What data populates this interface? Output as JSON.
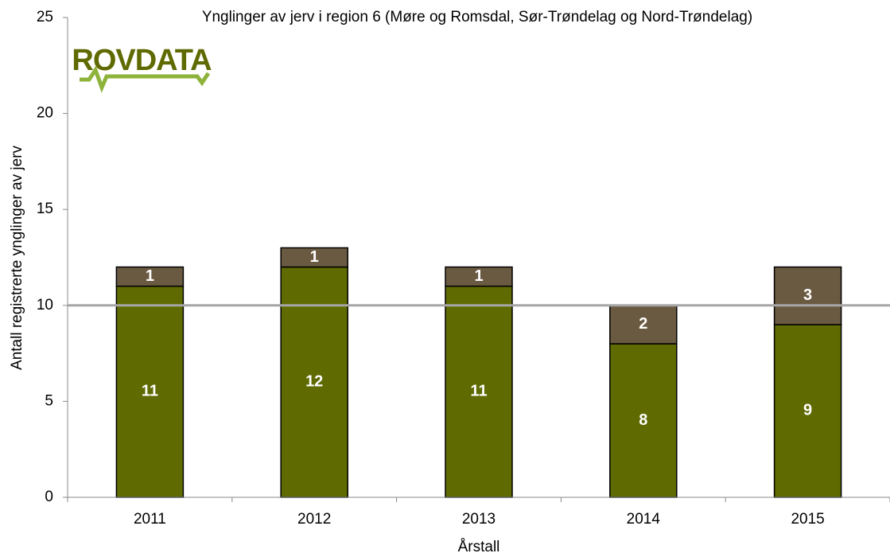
{
  "chart_data": {
    "type": "stacked_bar",
    "title": "Ynglinger av jerv i region 6 (Møre og Romsdal, Sør-Trøndelag og Nord-Trøndelag)",
    "logo": "ROVDATA",
    "x_label": "Årstall",
    "y_label": "Antall registrerte ynglinger av jerv",
    "categories": [
      "2011",
      "2012",
      "2013",
      "2014",
      "2015"
    ],
    "series": [
      {
        "color": "#5f6a00",
        "values": [
          11,
          12,
          11,
          8,
          9
        ]
      },
      {
        "color": "#6b5a42",
        "values": [
          1,
          1,
          1,
          2,
          3
        ]
      }
    ],
    "reference_line": {
      "value": 10,
      "color": "#a6a6a6"
    },
    "ylim": [
      0,
      25
    ],
    "yticks": [
      0,
      5,
      10,
      15,
      20,
      25
    ],
    "grid": false
  }
}
